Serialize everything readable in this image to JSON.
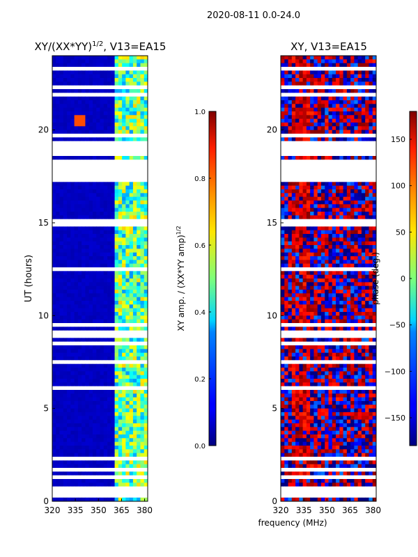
{
  "figure": {
    "suptitle": "2020-08-11 0.0-24.0",
    "xlabel": "frequency (MHz)"
  },
  "chart_data": [
    {
      "type": "heatmap",
      "panel": "amplitude",
      "title_main": "XY/(XX*YY)",
      "title_exponent": "1/2",
      "title_suffix": ", V13=EA15",
      "xlabel": "",
      "ylabel": "UT (hours)",
      "xlim": [
        320,
        382
      ],
      "ylim": [
        0,
        24
      ],
      "xticks": [
        320,
        335,
        350,
        365,
        380
      ],
      "yticks": [
        0,
        5,
        10,
        15,
        20
      ],
      "colorbar": {
        "label_main": "XY amp. / (XX*YY amp)",
        "label_exponent": "1/2",
        "range": [
          0.0,
          1.0
        ],
        "ticks": [
          "0.0",
          "0.2",
          "0.4",
          "0.6",
          "0.8",
          "1.0"
        ],
        "tick_values": [
          0.0,
          0.2,
          0.4,
          0.6,
          0.8,
          1.0
        ],
        "colormap": "jet"
      },
      "features": {
        "background_level": 0.05,
        "active_band_mhz": [
          360,
          382
        ],
        "active_band_level": 0.45,
        "spot": {
          "freq_mhz": 338,
          "ut_hours": 20.5,
          "level": 0.8
        },
        "flagged_rows_ut": [
          0.3,
          0.6,
          1.4,
          1.6,
          2.3,
          6.2,
          7.5,
          8.5,
          8.8,
          9.2,
          9.5,
          12.5,
          14.8,
          15.2,
          17.3,
          17.5,
          17.7,
          17.9,
          18.2,
          18.4,
          18.7,
          18.9,
          19.2,
          19.4,
          19.6,
          21.0,
          21.8,
          22.3,
          23.0,
          23.3
        ]
      }
    },
    {
      "type": "heatmap",
      "panel": "phase",
      "title": "XY, V13=EA15",
      "xlabel": "",
      "ylabel": "",
      "xlim": [
        320,
        382
      ],
      "ylim": [
        0,
        24
      ],
      "xticks": [
        320,
        335,
        350,
        365,
        380
      ],
      "yticks": [
        0,
        5,
        10,
        15,
        20
      ],
      "colorbar": {
        "label": "phase (deg.)",
        "range": [
          -180,
          180
        ],
        "ticks": [
          "−150",
          "−100",
          "−50",
          "0",
          "50",
          "100",
          "150"
        ],
        "tick_values": [
          -150,
          -100,
          -50,
          0,
          50,
          100,
          150
        ],
        "colormap": "jet"
      },
      "features": {
        "dominant_phase_deg": 150,
        "noise_phase_deg": -150,
        "flagged_rows_ut": [
          0.3,
          0.6,
          1.4,
          1.6,
          2.3,
          6.2,
          7.5,
          8.5,
          8.8,
          9.2,
          9.5,
          12.5,
          14.8,
          15.2,
          17.3,
          17.5,
          17.7,
          17.9,
          18.2,
          18.4,
          18.7,
          18.9,
          19.2,
          19.4,
          19.6,
          21.0,
          21.8,
          22.3,
          23.0,
          23.3
        ]
      }
    }
  ]
}
